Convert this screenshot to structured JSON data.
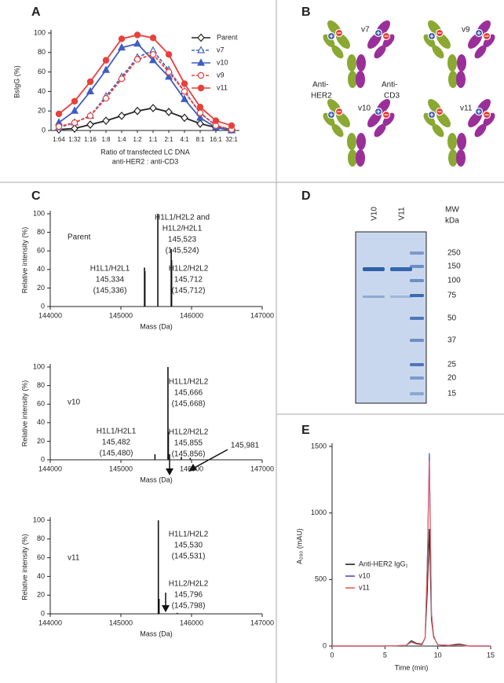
{
  "panel_labels": [
    "A",
    "B",
    "C",
    "D",
    "E"
  ],
  "chart_data": [
    {
      "type": "line",
      "ylabel": "BsIgG (%)",
      "xlabel": [
        "Ratio of transfected LC DNA",
        "anti-HER2 : anti-CD3"
      ],
      "categories": [
        "1:64",
        "1:32",
        "1:16",
        "1:8",
        "1:4",
        "1:2",
        "1:1",
        "2:1",
        "4:1",
        "8:1",
        "16:1",
        "32:1"
      ],
      "ylim": [
        0,
        100
      ],
      "yticks": [
        0,
        20,
        40,
        60,
        80,
        100
      ],
      "series": [
        {
          "name": "Parent",
          "color": "#222222",
          "marker": "diamond-open",
          "dashed": false,
          "values": [
            1,
            2,
            6,
            10,
            15,
            20,
            23,
            19,
            13,
            7,
            3,
            1
          ]
        },
        {
          "name": "v7",
          "color": "#4a68c4",
          "marker": "triangle-open",
          "dashed": true,
          "values": [
            3,
            8,
            15,
            35,
            55,
            75,
            82,
            62,
            40,
            18,
            5,
            1
          ]
        },
        {
          "name": "v10",
          "color": "#3f5fc0",
          "marker": "triangle",
          "dashed": false,
          "values": [
            8,
            20,
            40,
            62,
            85,
            89,
            72,
            55,
            32,
            13,
            3,
            0
          ]
        },
        {
          "name": "v9",
          "color": "#e8403a",
          "marker": "circle-open",
          "dashed": true,
          "values": [
            4,
            8,
            15,
            33,
            53,
            73,
            78,
            60,
            40,
            18,
            5,
            1
          ]
        },
        {
          "name": "v11",
          "color": "#e8403a",
          "marker": "circle",
          "dashed": false,
          "values": [
            17,
            30,
            50,
            72,
            94,
            98,
            95,
            78,
            48,
            24,
            10,
            5
          ]
        }
      ]
    },
    {
      "type": "spectrum",
      "label": "Parent",
      "ylabel": "Relative intensity (%)",
      "xlabel": "Mass (Da)",
      "xlim": [
        144000,
        147000
      ],
      "xticks": [
        144000,
        145000,
        146000,
        147000
      ],
      "ylim": [
        0,
        100
      ],
      "yticks": [
        0,
        20,
        40,
        60,
        80,
        100
      ],
      "x": [
        145334,
        145340,
        145523,
        145712,
        145718
      ],
      "values": [
        42,
        38,
        100,
        62,
        50
      ],
      "color": "#111111",
      "annotations": [
        {
          "lines": [
            "H1L1/H2L1",
            "145,334",
            "(145,336)"
          ]
        },
        {
          "lines": [
            "H1L1/H2L2 and",
            "H1L2/H2L1",
            "145,523",
            "(145,524)"
          ]
        },
        {
          "lines": [
            "H1L2/H2L2",
            "145,712",
            "(145,712)"
          ]
        }
      ]
    },
    {
      "type": "spectrum",
      "label": "v10",
      "ylabel": "Relative intensity (%)",
      "xlabel": "Mass (Da)",
      "xlim": [
        144000,
        147000
      ],
      "xticks": [
        144000,
        145000,
        146000,
        147000
      ],
      "ylim": [
        0,
        100
      ],
      "yticks": [
        0,
        20,
        40,
        60,
        80,
        100
      ],
      "x": [
        145482,
        145666,
        145672,
        145855,
        145981
      ],
      "values": [
        6,
        100,
        30,
        3,
        2
      ],
      "color": "#111111",
      "annotations": [
        {
          "lines": [
            "H1L1/H2L2",
            "145,666",
            "(145,668)"
          ]
        },
        {
          "lines": [
            "H1L2/H2L2",
            "145,855",
            "(145,856)"
          ]
        },
        {
          "lines": [
            "H1L1/H2L1",
            "145,482",
            "(145,480)"
          ]
        },
        {
          "lines": [
            "145,981"
          ]
        }
      ]
    },
    {
      "type": "spectrum",
      "label": "v11",
      "ylabel": "Relative intensity (%)",
      "xlabel": "Mass (Da)",
      "xlim": [
        144000,
        147000
      ],
      "xticks": [
        144000,
        145000,
        146000,
        147000
      ],
      "ylim": [
        0,
        100
      ],
      "yticks": [
        0,
        20,
        40,
        60,
        80,
        100
      ],
      "x": [
        145530,
        145540,
        145796
      ],
      "values": [
        100,
        16,
        1
      ],
      "color": "#111111",
      "annotations": [
        {
          "lines": [
            "H1L1/H2L2",
            "145,530",
            "(145,531)"
          ]
        },
        {
          "lines": [
            "H1L2/H2L2",
            "145,796",
            "(145,798)"
          ]
        }
      ]
    },
    {
      "type": "line",
      "ylabel": "A₂₈₀ (mAU)",
      "xlabel": [
        "Time (min)"
      ],
      "xlim": [
        0,
        15
      ],
      "xticks": [
        0,
        5,
        10,
        15
      ],
      "ylim": [
        0,
        1500
      ],
      "yticks": [
        0,
        500,
        1000,
        1500
      ],
      "x": [
        0,
        5,
        7,
        7.5,
        8,
        8.5,
        8.8,
        9,
        9.2,
        9.4,
        9.6,
        9.8,
        10,
        11,
        12,
        13,
        15
      ],
      "series": [
        {
          "name": "Anti-HER2 IgG₁",
          "color": "#222222",
          "values": [
            0,
            0,
            5,
            40,
            20,
            15,
            60,
            400,
            880,
            200,
            70,
            40,
            10,
            5,
            15,
            0,
            0
          ]
        },
        {
          "name": "v10",
          "color": "#4b4bc8",
          "values": [
            0,
            0,
            5,
            30,
            15,
            10,
            60,
            600,
            1450,
            250,
            80,
            40,
            10,
            5,
            5,
            0,
            0
          ]
        },
        {
          "name": "v11",
          "color": "#e8605f",
          "values": [
            0,
            0,
            5,
            30,
            15,
            10,
            60,
            580,
            1390,
            240,
            80,
            40,
            10,
            5,
            5,
            0,
            0
          ]
        }
      ]
    }
  ],
  "diagram": {
    "variants": [
      "v7",
      "v9",
      "v10",
      "v11"
    ],
    "left_label": [
      "Anti-",
      "HER2"
    ],
    "right_label": [
      "Anti-",
      "CD3"
    ]
  },
  "gel": {
    "lanes": [
      "V10",
      "V11"
    ],
    "mw_title": "MW",
    "mw_unit": "kDa",
    "markers": [
      "250",
      "150",
      "100",
      "75",
      "50",
      "37",
      "25",
      "20",
      "15"
    ]
  }
}
